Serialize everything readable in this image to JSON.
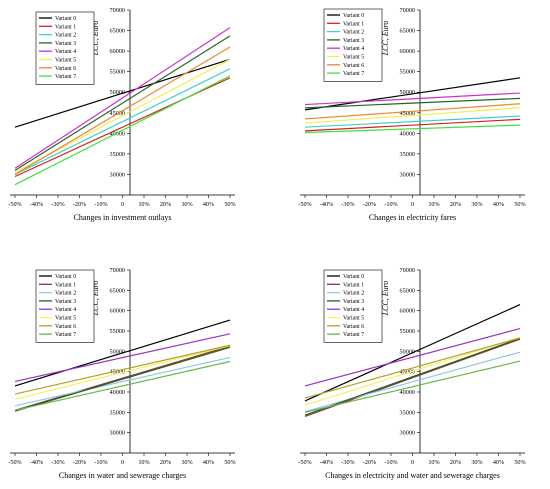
{
  "chart_data": [
    {
      "type": "line",
      "x": [
        "-50%",
        "-40%",
        "-30%",
        "-20%",
        "-10%",
        "0",
        "10%",
        "20%",
        "30%",
        "40%",
        "50%"
      ],
      "xlabel": "Changes in investment outlays",
      "ylabel": "LCC, Euro",
      "ylim": [
        25000,
        70000
      ],
      "yticks": [
        30000,
        35000,
        40000,
        45000,
        50000,
        55000,
        60000,
        65000,
        70000
      ],
      "legend_position": "top-left",
      "series": [
        {
          "name": "Variant 0",
          "color": "#000000",
          "start": 41500,
          "end": 58000
        },
        {
          "name": "Variant 1",
          "color": "#d62020",
          "start": 29500,
          "end": 53500
        },
        {
          "name": "Variant 2",
          "color": "#40d0d0",
          "start": 30000,
          "end": 55700
        },
        {
          "name": "Variant 3",
          "color": "#1f6b1f",
          "start": 31000,
          "end": 63700
        },
        {
          "name": "Variant 4",
          "color": "#d030d0",
          "start": 31500,
          "end": 65700
        },
        {
          "name": "Variant 5",
          "color": "#f0f050",
          "start": 30500,
          "end": 58000
        },
        {
          "name": "Variant 6",
          "color": "#e88a2e",
          "start": 30000,
          "end": 61000
        },
        {
          "name": "Variant 7",
          "color": "#40e040",
          "start": 27500,
          "end": 54000
        }
      ]
    },
    {
      "type": "line",
      "x": [
        "-50%",
        "-40%",
        "-30%",
        "-20%",
        "-10%",
        "0",
        "10%",
        "20%",
        "30%",
        "40%",
        "50%"
      ],
      "xlabel": "Changes in electricity fares",
      "ylabel": "LCC, Euro",
      "ylim": [
        25000,
        70000
      ],
      "yticks": [
        30000,
        35000,
        40000,
        45000,
        50000,
        55000,
        60000,
        65000,
        70000
      ],
      "legend_position": "top-left",
      "series": [
        {
          "name": "Variant 0",
          "color": "#000000",
          "start": 45700,
          "end": 53500
        },
        {
          "name": "Variant 1",
          "color": "#d62020",
          "start": 40600,
          "end": 43400
        },
        {
          "name": "Variant 2",
          "color": "#40d0d0",
          "start": 41500,
          "end": 44200
        },
        {
          "name": "Variant 3",
          "color": "#1f6b1f",
          "start": 46200,
          "end": 48500
        },
        {
          "name": "Variant 4",
          "color": "#d030d0",
          "start": 47000,
          "end": 49800
        },
        {
          "name": "Variant 5",
          "color": "#f0f050",
          "start": 42500,
          "end": 46200
        },
        {
          "name": "Variant 6",
          "color": "#e88a2e",
          "start": 43500,
          "end": 47200
        },
        {
          "name": "Variant 7",
          "color": "#40e040",
          "start": 40200,
          "end": 42000
        }
      ]
    },
    {
      "type": "line",
      "x": [
        "-50%",
        "-40%",
        "-30%",
        "-20%",
        "-10%",
        "0",
        "10%",
        "20%",
        "30%",
        "40%",
        "50%"
      ],
      "xlabel": "Changes in water and sewerage charges",
      "ylabel": "LCC, Euro",
      "ylim": [
        25000,
        70000
      ],
      "yticks": [
        30000,
        35000,
        40000,
        45000,
        50000,
        55000,
        60000,
        65000,
        70000
      ],
      "legend_position": "top-left",
      "series": [
        {
          "name": "Variant 0",
          "color": "#000000",
          "start": 41500,
          "end": 57700
        },
        {
          "name": "Variant 1",
          "color": "#8b3a3a",
          "start": 35500,
          "end": 51300
        },
        {
          "name": "Variant 2",
          "color": "#8ec8ec",
          "start": 36600,
          "end": 48500
        },
        {
          "name": "Variant 3",
          "color": "#2e5e1e",
          "start": 35300,
          "end": 51000
        },
        {
          "name": "Variant 4",
          "color": "#9a30c8",
          "start": 42600,
          "end": 54300
        },
        {
          "name": "Variant 5",
          "color": "#f2f26a",
          "start": 38200,
          "end": 51400
        },
        {
          "name": "Variant 6",
          "color": "#b8a02a",
          "start": 39500,
          "end": 51500
        },
        {
          "name": "Variant 7",
          "color": "#6ab84a",
          "start": 35500,
          "end": 47500
        }
      ]
    },
    {
      "type": "line",
      "x": [
        "-50%",
        "-40%",
        "-30%",
        "-20%",
        "-10%",
        "0",
        "10%",
        "20%",
        "30%",
        "40%",
        "50%"
      ],
      "xlabel": "Changes in electricity and water and sewerage charges",
      "ylabel": "LCC, Euro",
      "ylim": [
        25000,
        70000
      ],
      "yticks": [
        30000,
        35000,
        40000,
        45000,
        50000,
        55000,
        60000,
        65000,
        70000
      ],
      "legend_position": "top-left",
      "series": [
        {
          "name": "Variant 0",
          "color": "#000000",
          "start": 37800,
          "end": 61500
        },
        {
          "name": "Variant 1",
          "color": "#8b3a3a",
          "start": 34000,
          "end": 53000
        },
        {
          "name": "Variant 2",
          "color": "#8ec8ec",
          "start": 35200,
          "end": 49800
        },
        {
          "name": "Variant 3",
          "color": "#2e5e1e",
          "start": 34300,
          "end": 53200
        },
        {
          "name": "Variant 4",
          "color": "#9a30c8",
          "start": 41500,
          "end": 55600
        },
        {
          "name": "Variant 5",
          "color": "#f2f26a",
          "start": 36800,
          "end": 53400
        },
        {
          "name": "Variant 6",
          "color": "#b8a02a",
          "start": 38500,
          "end": 53300
        },
        {
          "name": "Variant 7",
          "color": "#6ab84a",
          "start": 35000,
          "end": 47600
        }
      ]
    }
  ]
}
